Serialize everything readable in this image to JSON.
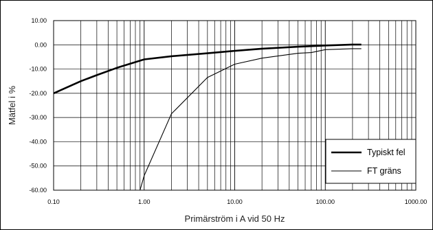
{
  "chart_data": {
    "type": "line",
    "title": "",
    "xlabel": "Primärström i A vid 50 Hz",
    "ylabel": "Mätfel i %",
    "xscale": "log",
    "xlim": [
      0.1,
      1000
    ],
    "ylim": [
      -60,
      10
    ],
    "x_tick_labels": [
      "0.10",
      "1.00",
      "10.00",
      "100.00",
      "1000.00"
    ],
    "y_tick_labels": [
      "10.00",
      "0.00",
      "-10.00",
      "-20.00",
      "-30.00",
      "-40.00",
      "-50.00",
      "-60.00"
    ],
    "grid": true,
    "legend_position": "bottom-right",
    "series": [
      {
        "name": "Typiskt fel",
        "color": "#000000",
        "weight": "thick",
        "points": [
          [
            0.1,
            -20
          ],
          [
            0.2,
            -15
          ],
          [
            0.3,
            -12.5
          ],
          [
            0.5,
            -9.5
          ],
          [
            1.0,
            -6
          ],
          [
            2.0,
            -4.7
          ],
          [
            5.0,
            -3.5
          ],
          [
            10.0,
            -2.5
          ],
          [
            20.0,
            -1.6
          ],
          [
            50.0,
            -0.8
          ],
          [
            100.0,
            -0.3
          ],
          [
            200.0,
            0.1
          ],
          [
            250.0,
            0.1
          ]
        ]
      },
      {
        "name": "FT gräns",
        "color": "#000000",
        "weight": "thin",
        "points": [
          [
            0.9,
            -61
          ],
          [
            1.0,
            -54
          ],
          [
            2.0,
            -28.5
          ],
          [
            5.0,
            -13.5
          ],
          [
            10.0,
            -8
          ],
          [
            20.0,
            -5.5
          ],
          [
            50.0,
            -3.5
          ],
          [
            70.0,
            -3.2
          ],
          [
            100.0,
            -2
          ],
          [
            200.0,
            -1.6
          ],
          [
            250.0,
            -1.6
          ]
        ]
      }
    ]
  }
}
